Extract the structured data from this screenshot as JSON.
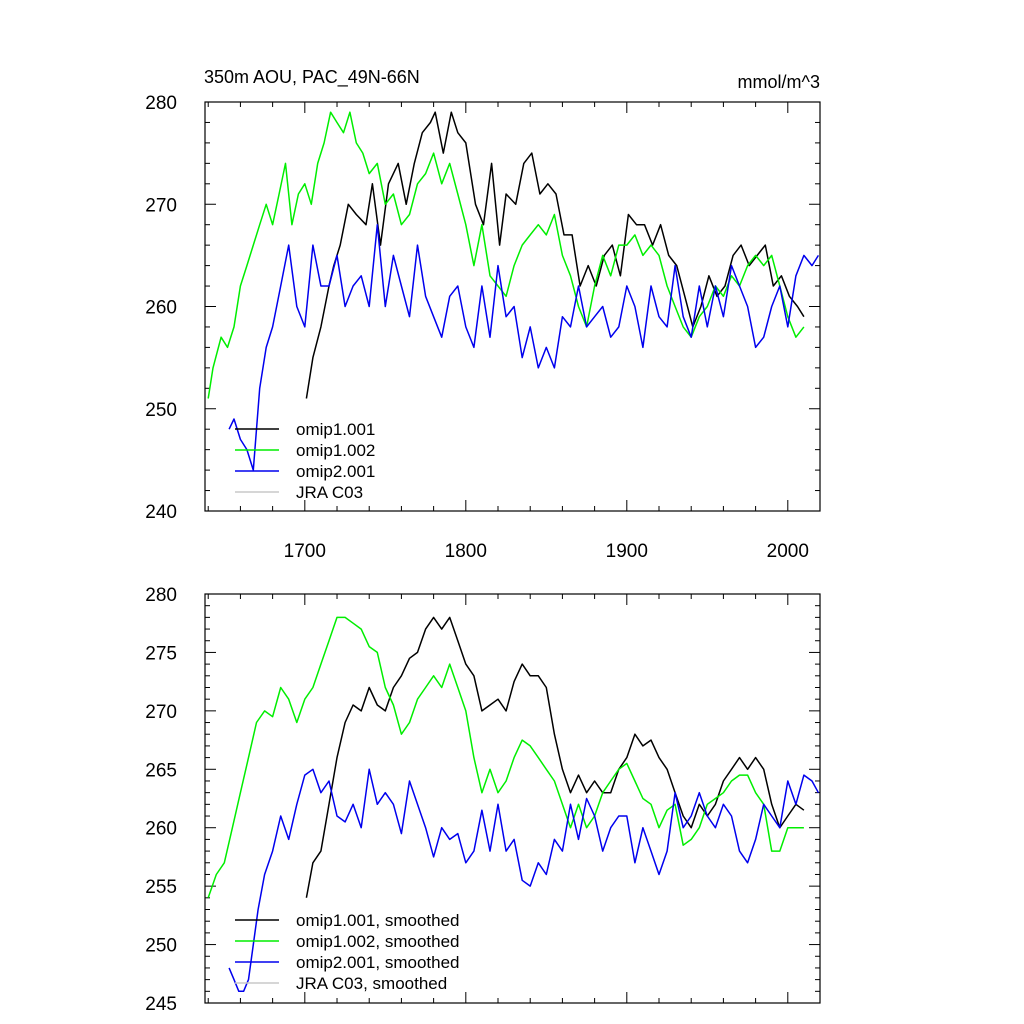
{
  "chart_data": [
    {
      "type": "line",
      "title": "350m AOU, PAC_49N-66N",
      "units": "mmol/m^3",
      "xlim": [
        1638,
        2020
      ],
      "ylim": [
        240,
        280
      ],
      "x_ticks": [
        1700,
        1800,
        1900,
        2000
      ],
      "x_tick_labels": [
        "1700",
        "1800",
        "1900",
        "2000"
      ],
      "y_ticks": [
        240,
        250,
        260,
        270,
        280
      ],
      "y_tick_labels": [
        "240",
        "250",
        "260",
        "270",
        "280"
      ],
      "legend": [
        "omip1.001",
        "omip1.002",
        "omip2.001",
        "JRA C03"
      ],
      "series": [
        {
          "name": "omip1.001",
          "color": "#000000",
          "x": [
            1701,
            1705,
            1710,
            1715,
            1718,
            1722,
            1727,
            1732,
            1738,
            1742,
            1747,
            1752,
            1758,
            1763,
            1768,
            1773,
            1778,
            1781,
            1786,
            1791,
            1795,
            1800,
            1806,
            1811,
            1816,
            1821,
            1825,
            1831,
            1836,
            1841,
            1846,
            1851,
            1856,
            1861,
            1866,
            1871,
            1876,
            1881,
            1886,
            1891,
            1896,
            1901,
            1906,
            1911,
            1916,
            1921,
            1926,
            1931,
            1936,
            1941,
            1946,
            1951,
            1956,
            1961,
            1966,
            1971,
            1976,
            1981,
            1986,
            1991,
            1996,
            2001,
            2006,
            2010
          ],
          "y": [
            251,
            255,
            258,
            262,
            264,
            266,
            270,
            269,
            268,
            272,
            266,
            272,
            274,
            270,
            274,
            277,
            278,
            279,
            275,
            279,
            277,
            276,
            270,
            268,
            274,
            266,
            271,
            270,
            274,
            275,
            271,
            272,
            271,
            267,
            267,
            262,
            264,
            262,
            265,
            266,
            263,
            269,
            268,
            268,
            266,
            268,
            265,
            264,
            261,
            258,
            260,
            263,
            261,
            262,
            265,
            266,
            264,
            265,
            266,
            262,
            263,
            261,
            260,
            259
          ]
        },
        {
          "name": "omip1.002",
          "color": "#00ee00",
          "x": [
            1640,
            1643,
            1648,
            1652,
            1656,
            1660,
            1664,
            1668,
            1672,
            1676,
            1680,
            1684,
            1688,
            1692,
            1696,
            1700,
            1704,
            1708,
            1712,
            1716,
            1720,
            1724,
            1728,
            1732,
            1736,
            1740,
            1745,
            1750,
            1755,
            1760,
            1765,
            1770,
            1775,
            1780,
            1785,
            1790,
            1795,
            1800,
            1805,
            1810,
            1815,
            1820,
            1825,
            1830,
            1835,
            1840,
            1845,
            1850,
            1855,
            1860,
            1865,
            1870,
            1875,
            1880,
            1885,
            1890,
            1895,
            1900,
            1905,
            1910,
            1915,
            1920,
            1925,
            1930,
            1935,
            1940,
            1945,
            1950,
            1955,
            1960,
            1965,
            1970,
            1975,
            1980,
            1985,
            1990,
            1995,
            2000,
            2005,
            2010
          ],
          "y": [
            251,
            254,
            257,
            256,
            258,
            262,
            264,
            266,
            268,
            270,
            268,
            271,
            274,
            268,
            271,
            272,
            270,
            274,
            276,
            279,
            278,
            277,
            279,
            276,
            275,
            273,
            274,
            270,
            271,
            268,
            269,
            272,
            273,
            275,
            272,
            274,
            271,
            268,
            264,
            268,
            263,
            262,
            261,
            264,
            266,
            267,
            268,
            267,
            269,
            265,
            263,
            260,
            258,
            262,
            265,
            263,
            266,
            266,
            267,
            265,
            266,
            265,
            262,
            260,
            258,
            257,
            259,
            260,
            262,
            261,
            263,
            262,
            264,
            265,
            264,
            265,
            262,
            259,
            257,
            258
          ]
        },
        {
          "name": "omip2.001",
          "color": "#0000ee",
          "x": [
            1653,
            1656,
            1660,
            1664,
            1668,
            1672,
            1676,
            1680,
            1685,
            1690,
            1695,
            1700,
            1705,
            1710,
            1715,
            1720,
            1725,
            1730,
            1735,
            1740,
            1745,
            1750,
            1755,
            1760,
            1765,
            1770,
            1775,
            1780,
            1785,
            1790,
            1795,
            1800,
            1805,
            1810,
            1815,
            1820,
            1825,
            1830,
            1835,
            1840,
            1845,
            1850,
            1855,
            1860,
            1865,
            1870,
            1875,
            1880,
            1885,
            1890,
            1895,
            1900,
            1905,
            1910,
            1915,
            1920,
            1925,
            1930,
            1935,
            1940,
            1945,
            1950,
            1955,
            1960,
            1965,
            1970,
            1975,
            1980,
            1985,
            1990,
            1995,
            2000,
            2005,
            2010,
            2015,
            2019
          ],
          "y": [
            248,
            249,
            247,
            246,
            244,
            252,
            256,
            258,
            262,
            266,
            260,
            258,
            266,
            262,
            262,
            265,
            260,
            262,
            263,
            260,
            268,
            260,
            265,
            262,
            259,
            266,
            261,
            259,
            257,
            261,
            262,
            258,
            256,
            262,
            257,
            264,
            259,
            260,
            255,
            258,
            254,
            256,
            254,
            259,
            258,
            262,
            258,
            259,
            260,
            257,
            258,
            262,
            260,
            256,
            262,
            259,
            258,
            264,
            259,
            257,
            262,
            258,
            262,
            259,
            264,
            262,
            260,
            256,
            257,
            260,
            262,
            258,
            263,
            265,
            264,
            265
          ]
        },
        {
          "name": "JRA C03",
          "color": "#c8c8c8",
          "x": [],
          "y": []
        }
      ]
    },
    {
      "type": "line",
      "title": "",
      "xlim": [
        1638,
        2020
      ],
      "ylim": [
        245,
        280
      ],
      "x_ticks": [
        1700,
        1800,
        1900,
        2000
      ],
      "y_ticks": [
        245,
        250,
        255,
        260,
        265,
        270,
        275,
        280
      ],
      "y_tick_labels": [
        "245",
        "250",
        "255",
        "260",
        "265",
        "270",
        "275",
        "280"
      ],
      "legend": [
        "omip1.001, smoothed",
        "omip1.002, smoothed",
        "omip2.001, smoothed",
        "JRA C03, smoothed"
      ],
      "series": [
        {
          "name": "omip1.001, smoothed",
          "color": "#000000",
          "x": [
            1701,
            1705,
            1710,
            1715,
            1720,
            1725,
            1730,
            1735,
            1740,
            1745,
            1750,
            1755,
            1760,
            1765,
            1770,
            1775,
            1780,
            1785,
            1790,
            1795,
            1800,
            1805,
            1810,
            1815,
            1820,
            1825,
            1830,
            1835,
            1840,
            1845,
            1850,
            1855,
            1860,
            1865,
            1870,
            1875,
            1880,
            1885,
            1890,
            1895,
            1900,
            1905,
            1910,
            1915,
            1920,
            1925,
            1930,
            1935,
            1940,
            1945,
            1950,
            1955,
            1960,
            1965,
            1970,
            1975,
            1980,
            1985,
            1990,
            1995,
            2000,
            2005,
            2010
          ],
          "y": [
            254,
            257,
            258,
            262,
            266,
            269,
            270.5,
            270,
            272,
            270.5,
            270,
            272,
            273,
            274.5,
            275,
            277,
            278,
            277,
            278,
            276,
            274,
            273,
            270,
            270.5,
            271,
            270,
            272.5,
            274,
            273,
            273,
            272,
            268,
            265,
            263,
            264.5,
            263,
            264,
            263,
            263,
            265,
            266,
            268,
            267,
            267.5,
            266,
            265,
            263,
            261,
            260,
            262,
            261,
            262,
            264,
            265,
            266,
            265,
            266,
            265,
            262,
            260,
            261,
            262,
            261.5
          ]
        },
        {
          "name": "omip1.002, smoothed",
          "color": "#00ee00",
          "x": [
            1640,
            1645,
            1650,
            1655,
            1660,
            1665,
            1670,
            1675,
            1680,
            1685,
            1690,
            1695,
            1700,
            1705,
            1710,
            1715,
            1720,
            1725,
            1730,
            1735,
            1740,
            1745,
            1750,
            1755,
            1760,
            1765,
            1770,
            1775,
            1780,
            1785,
            1790,
            1795,
            1800,
            1805,
            1810,
            1815,
            1820,
            1825,
            1830,
            1835,
            1840,
            1845,
            1850,
            1855,
            1860,
            1865,
            1870,
            1875,
            1880,
            1885,
            1890,
            1895,
            1900,
            1905,
            1910,
            1915,
            1920,
            1925,
            1930,
            1935,
            1940,
            1945,
            1950,
            1955,
            1960,
            1965,
            1970,
            1975,
            1980,
            1985,
            1990,
            1995,
            2000,
            2005,
            2010
          ],
          "y": [
            254,
            256,
            257,
            260,
            263,
            266,
            269,
            270,
            269.5,
            272,
            271,
            269,
            271,
            272,
            274,
            276,
            278,
            278,
            277.5,
            277,
            275.5,
            275,
            272,
            270.5,
            268,
            269,
            271,
            272,
            273,
            272,
            274,
            272,
            270,
            266,
            263,
            265,
            263,
            264,
            266,
            267.5,
            267,
            266,
            265,
            264,
            262,
            260,
            262,
            260,
            261,
            263,
            264,
            265,
            265.5,
            264,
            262.5,
            262,
            260,
            261.5,
            262,
            258.5,
            259,
            260,
            262,
            262.5,
            263,
            264,
            264.5,
            264.5,
            263,
            262,
            258,
            258,
            260,
            260,
            260
          ]
        },
        {
          "name": "omip2.001, smoothed",
          "color": "#0000ee",
          "x": [
            1653,
            1656,
            1659,
            1662,
            1665,
            1668,
            1671,
            1675,
            1680,
            1685,
            1690,
            1695,
            1700,
            1705,
            1710,
            1715,
            1720,
            1725,
            1730,
            1735,
            1740,
            1745,
            1750,
            1755,
            1760,
            1765,
            1770,
            1775,
            1780,
            1785,
            1790,
            1795,
            1800,
            1805,
            1810,
            1815,
            1820,
            1825,
            1830,
            1835,
            1840,
            1845,
            1850,
            1855,
            1860,
            1865,
            1870,
            1875,
            1880,
            1885,
            1890,
            1895,
            1900,
            1905,
            1910,
            1915,
            1920,
            1925,
            1930,
            1935,
            1940,
            1945,
            1950,
            1955,
            1960,
            1965,
            1970,
            1975,
            1980,
            1985,
            1990,
            1995,
            2000,
            2005,
            2010,
            2015,
            2019
          ],
          "y": [
            248,
            247,
            246,
            246,
            247,
            250,
            253,
            256,
            258,
            261,
            259,
            262,
            264.5,
            265,
            263,
            264,
            261,
            260.5,
            262,
            260,
            265,
            262,
            263,
            262,
            259.5,
            264,
            262,
            260,
            257.5,
            260,
            259,
            259.5,
            257,
            258,
            261.5,
            258,
            262,
            258,
            259,
            255.5,
            255,
            257,
            256,
            259,
            258,
            262,
            259,
            262.5,
            261,
            258,
            260,
            261,
            261,
            257,
            260,
            258,
            256,
            258,
            263,
            260,
            261,
            263,
            261,
            260,
            262,
            261,
            258,
            257,
            259,
            262,
            261,
            260,
            264,
            262,
            264.5,
            264,
            263
          ]
        },
        {
          "name": "JRA C03, smoothed",
          "color": "#c8c8c8",
          "x": [],
          "y": []
        }
      ]
    }
  ]
}
